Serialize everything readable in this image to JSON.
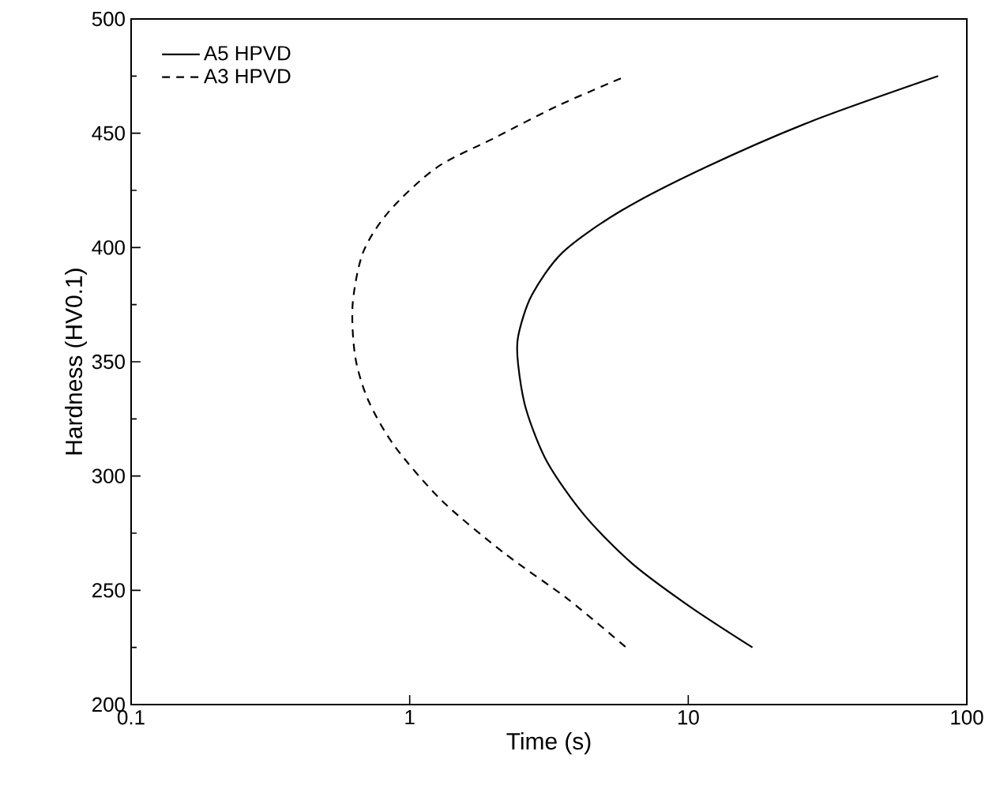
{
  "chart_data": {
    "type": "line",
    "xlabel": "Time (s)",
    "ylabel": "Hardness (HV0.1)",
    "log": "x",
    "xlim": [
      0.1,
      100
    ],
    "ylim": [
      200,
      500
    ],
    "xticks": [
      0.1,
      1,
      10,
      100
    ],
    "yticks": [
      200,
      250,
      300,
      350,
      400,
      450,
      500
    ],
    "legend": "top left",
    "series": [
      {
        "name": "A5 HPVD",
        "color": "#000000",
        "line_style": "solid",
        "x": [
          78.9,
          27.4,
          11.5,
          5.73,
          3.55,
          2.74,
          2.45,
          2.45,
          2.62,
          3.12,
          4.23,
          6.25,
          10.1,
          17.0
        ],
        "values": [
          475,
          455,
          435,
          416,
          398,
          379,
          361,
          349,
          329,
          306,
          283,
          262,
          243,
          225
        ]
      },
      {
        "name": "A3 HPVD",
        "color": "#000000",
        "line_style": "dashed",
        "x": [
          5.73,
          3.4,
          2.02,
          1.25,
          0.846,
          0.681,
          0.624,
          0.638,
          0.711,
          0.884,
          1.31,
          2.2,
          3.71,
          6.12
        ],
        "values": [
          474,
          462,
          448,
          435,
          416,
          398,
          375,
          352,
          333,
          313,
          289,
          266,
          246,
          224
        ]
      }
    ]
  }
}
